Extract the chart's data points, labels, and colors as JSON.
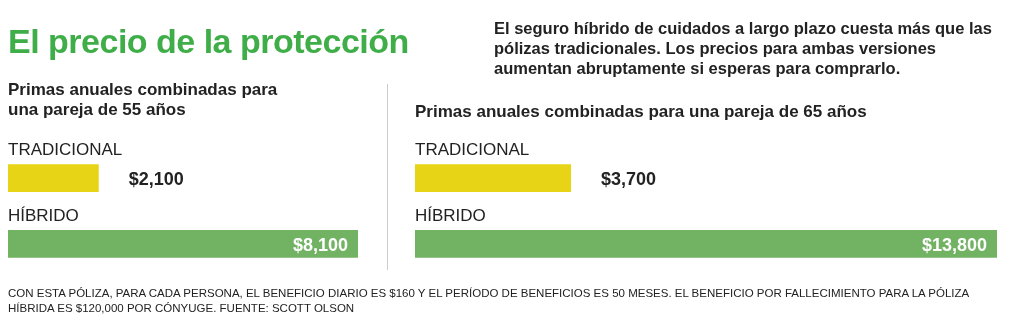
{
  "chart_data": [
    {
      "type": "other",
      "title": "El precio de la protección",
      "subtitle": "El seguro híbrido de cuidados a largo plazo cuesta más que las pólizas tradicionales. Los precios para ambas versiones aumentan abruptamente si esperas para comprarlo.",
      "annotations": [
        "CON ESTA PÓLIZA, PARA CADA PERSONA, EL BENEFICIO DIARIO ES $160 Y EL PERÍODO DE BENEFICIOS ES 50 MESES. EL BENEFICIO POR FALLECIMIENTO PARA LA PÓLIZA HÍBRIDA ES $120,000 POR CÓNYUGE. FUENTE: SCOTT OLSON"
      ]
    },
    {
      "type": "bar",
      "orientation": "horizontal",
      "title": "Primas anuales combinadas para una pareja de 55 años",
      "categories": [
        "TRADICIONAL",
        "HÍBRIDO"
      ],
      "values": [
        2100,
        8100
      ],
      "colors": [
        "#e8d417",
        "#72b263"
      ],
      "value_labels": [
        "$2,100",
        "$8,100"
      ]
    },
    {
      "type": "bar",
      "orientation": "horizontal",
      "title": "Primas anuales combinadas para una pareja de 65 años",
      "categories": [
        "TRADICIONAL",
        "HÍBRIDO"
      ],
      "values": [
        3700,
        13800
      ],
      "colors": [
        "#e8d417",
        "#72b263"
      ],
      "value_labels": [
        "$3,700",
        "$13,800"
      ]
    }
  ]
}
